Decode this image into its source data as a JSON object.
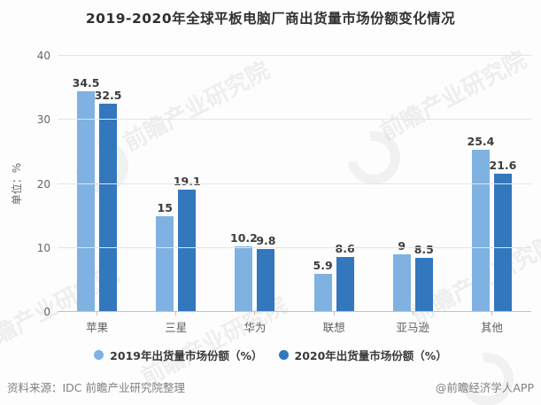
{
  "title": "2019-2020年全球平板电脑厂商出货量市场份额变化情况",
  "chart_data": {
    "type": "bar",
    "title": "2019-2020年全球平板电脑厂商出货量市场份额变化情况",
    "xlabel": "",
    "ylabel": "单位：%",
    "ylim": [
      0,
      40
    ],
    "yticks": [
      0,
      10,
      20,
      30,
      40
    ],
    "grid": true,
    "legend_position": "bottom",
    "categories": [
      "苹果",
      "三星",
      "华为",
      "联想",
      "亚马逊",
      "其他"
    ],
    "series": [
      {
        "name": "2019年出货量市场份额（%）",
        "color": "#7FB2E1",
        "values": [
          34.5,
          15,
          10.2,
          5.9,
          9,
          25.4
        ]
      },
      {
        "name": "2020年出货量市场份额（%）",
        "color": "#3377BD",
        "values": [
          32.5,
          19.1,
          9.8,
          8.6,
          8.5,
          21.6
        ]
      }
    ]
  },
  "footer": {
    "source": "资料来源：IDC 前瞻产业研究院整理",
    "credit": "@前瞻经济学人APP"
  },
  "watermark": {
    "text": "前瞻产业研究院",
    "logo": "qianzhan-swoosh-logo"
  }
}
